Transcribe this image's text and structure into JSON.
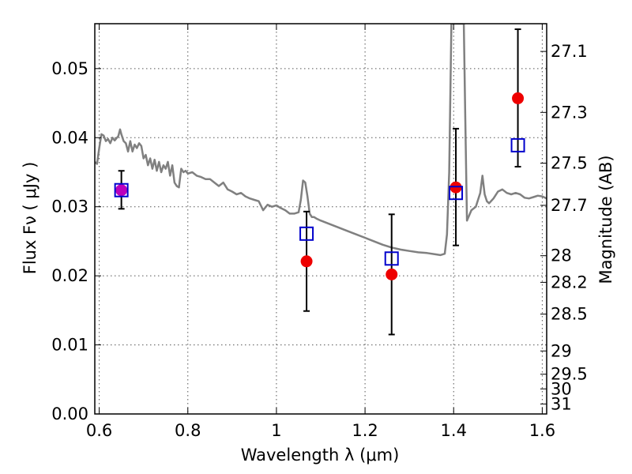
{
  "chart_data": {
    "type": "scatter",
    "xlabel": "Wavelength  λ (μm)",
    "ylabel": "Flux  Fν  ( μJy )",
    "y2label": "Magnitude (AB)",
    "xlim": [
      0.59,
      1.61
    ],
    "ylim": [
      0.0,
      0.0565
    ],
    "grid": true,
    "x_ticks": [
      0.6,
      0.8,
      1.0,
      1.2,
      1.4,
      1.6
    ],
    "x_tick_labels": [
      "0.6",
      "0.8",
      "1",
      "1.2",
      "1.4",
      "1.6"
    ],
    "y_ticks": [
      0.0,
      0.01,
      0.02,
      0.03,
      0.04,
      0.05
    ],
    "y_tick_labels": [
      "0.00",
      "0.01",
      "0.02",
      "0.03",
      "0.04",
      "0.05"
    ],
    "mag_ticks": [
      27.1,
      27.3,
      27.5,
      27.7,
      28,
      28.2,
      28.5,
      29,
      29.5,
      30,
      31
    ],
    "mag_tick_labels": [
      "27.1",
      "27.3",
      "27.5",
      "27.7",
      "28",
      "28.2",
      "28.5",
      "29",
      "29.5",
      "30",
      "31"
    ],
    "colors": {
      "model": "#808080",
      "observed": "#ee0000",
      "model_band": "#0000cc",
      "error_bar": "#000000",
      "magenta_point": "#bb00bb"
    },
    "model_spectrum": {
      "x": [
        0.59,
        0.595,
        0.6,
        0.605,
        0.61,
        0.615,
        0.62,
        0.625,
        0.63,
        0.635,
        0.64,
        0.643,
        0.647,
        0.65,
        0.655,
        0.66,
        0.665,
        0.67,
        0.675,
        0.68,
        0.685,
        0.69,
        0.695,
        0.7,
        0.705,
        0.71,
        0.715,
        0.72,
        0.725,
        0.73,
        0.735,
        0.74,
        0.745,
        0.75,
        0.755,
        0.76,
        0.765,
        0.77,
        0.775,
        0.78,
        0.785,
        0.79,
        0.795,
        0.8,
        0.81,
        0.82,
        0.83,
        0.84,
        0.85,
        0.86,
        0.87,
        0.88,
        0.89,
        0.9,
        0.91,
        0.92,
        0.93,
        0.94,
        0.95,
        0.96,
        0.97,
        0.98,
        0.99,
        1.0,
        1.01,
        1.02,
        1.03,
        1.04,
        1.05,
        1.055,
        1.06,
        1.065,
        1.07,
        1.075,
        1.08,
        1.085,
        1.09,
        1.1,
        1.12,
        1.14,
        1.16,
        1.18,
        1.2,
        1.22,
        1.24,
        1.26,
        1.28,
        1.3,
        1.32,
        1.34,
        1.36,
        1.37,
        1.38,
        1.385,
        1.39,
        1.395,
        1.4,
        1.403,
        1.406,
        1.408,
        1.412,
        1.416,
        1.42,
        1.423,
        1.426,
        1.43,
        1.44,
        1.45,
        1.46,
        1.465,
        1.47,
        1.475,
        1.48,
        1.49,
        1.5,
        1.51,
        1.52,
        1.53,
        1.54,
        1.55,
        1.56,
        1.57,
        1.58,
        1.59,
        1.6,
        1.61
      ],
      "y": [
        0.0365,
        0.0362,
        0.0385,
        0.0405,
        0.0403,
        0.0395,
        0.0398,
        0.0392,
        0.04,
        0.0396,
        0.04,
        0.0402,
        0.0412,
        0.0405,
        0.0395,
        0.0392,
        0.038,
        0.0395,
        0.038,
        0.039,
        0.0385,
        0.0392,
        0.0388,
        0.037,
        0.0375,
        0.036,
        0.037,
        0.0355,
        0.0368,
        0.0352,
        0.0365,
        0.035,
        0.036,
        0.0355,
        0.0365,
        0.0345,
        0.036,
        0.0335,
        0.033,
        0.0328,
        0.0355,
        0.035,
        0.0352,
        0.0348,
        0.035,
        0.0345,
        0.0343,
        0.034,
        0.034,
        0.0335,
        0.033,
        0.0335,
        0.0325,
        0.0322,
        0.0318,
        0.032,
        0.0315,
        0.0312,
        0.031,
        0.0308,
        0.0295,
        0.0303,
        0.03,
        0.0302,
        0.0298,
        0.0295,
        0.029,
        0.029,
        0.0292,
        0.031,
        0.0338,
        0.0335,
        0.0315,
        0.029,
        0.0285,
        0.0285,
        0.0283,
        0.028,
        0.0275,
        0.027,
        0.0265,
        0.026,
        0.0255,
        0.025,
        0.0245,
        0.0241,
        0.0238,
        0.0236,
        0.0234,
        0.0233,
        0.0231,
        0.023,
        0.0232,
        0.026,
        0.035,
        0.0565,
        0.0565,
        0.0565,
        0.0565,
        0.0565,
        0.0565,
        0.0565,
        0.0565,
        0.0565,
        0.044,
        0.028,
        0.0295,
        0.03,
        0.032,
        0.0345,
        0.0318,
        0.0308,
        0.0305,
        0.0312,
        0.0322,
        0.0325,
        0.032,
        0.0318,
        0.032,
        0.0318,
        0.0313,
        0.0312,
        0.0314,
        0.0316,
        0.0315,
        0.0312
      ]
    },
    "observed_points": [
      {
        "x": 0.65,
        "y": 0.0324,
        "y_low": 0.0297,
        "y_high": 0.0352
      },
      {
        "x": 1.068,
        "y": 0.0221,
        "y_low": 0.0149,
        "y_high": 0.0293
      },
      {
        "x": 1.26,
        "y": 0.0202,
        "y_low": 0.0115,
        "y_high": 0.0289
      },
      {
        "x": 1.405,
        "y": 0.0328,
        "y_low": 0.0244,
        "y_high": 0.0413
      },
      {
        "x": 1.545,
        "y": 0.0457,
        "y_low": 0.0358,
        "y_high": 0.0557
      }
    ],
    "model_band_points": [
      {
        "x": 0.65,
        "y": 0.0324
      },
      {
        "x": 1.068,
        "y": 0.0261
      },
      {
        "x": 1.26,
        "y": 0.0225
      },
      {
        "x": 1.405,
        "y": 0.032
      },
      {
        "x": 1.545,
        "y": 0.0389
      }
    ]
  }
}
